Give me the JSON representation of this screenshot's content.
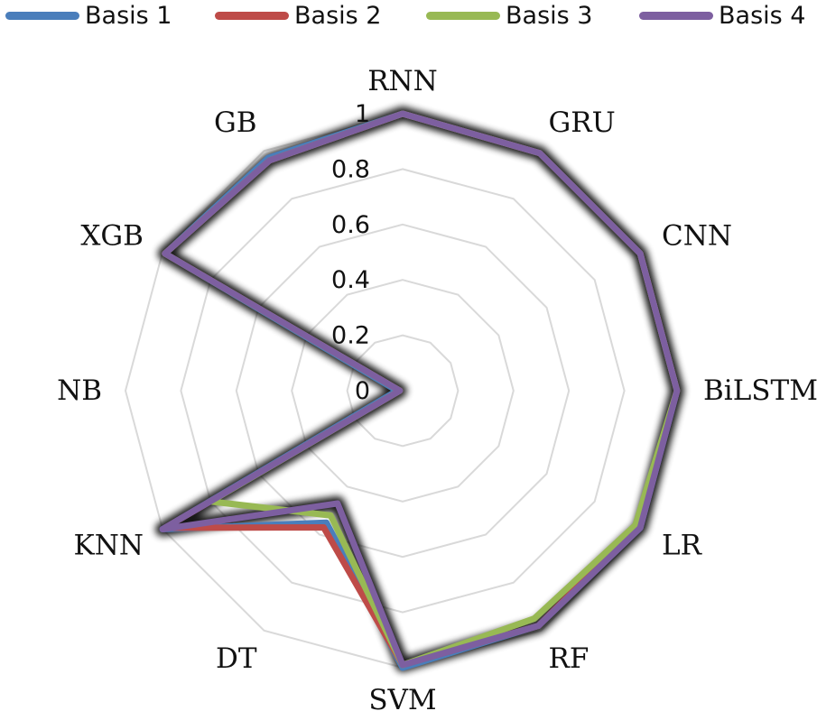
{
  "chart_data": {
    "type": "radar",
    "categories": [
      "RNN",
      "GRU",
      "CNN",
      "BiLSTM",
      "LR",
      "RF",
      "SVM",
      "DT",
      "KNN",
      "NB",
      "XGB",
      "GB"
    ],
    "axis_ticks": [
      "0",
      "0.2",
      "0.4",
      "0.6",
      "0.8",
      "1"
    ],
    "rmin": 0,
    "rmax": 1,
    "grid": true,
    "legend_position": "top",
    "series": [
      {
        "name": "Basis 1",
        "color": "#4a7ebb",
        "values": [
          1.0,
          0.99,
          0.99,
          0.99,
          0.99,
          0.98,
          1.0,
          0.55,
          1.0,
          0.02,
          0.99,
          0.97
        ]
      },
      {
        "name": "Basis 2",
        "color": "#be4b48",
        "values": [
          1.0,
          0.99,
          0.99,
          0.99,
          0.98,
          0.98,
          0.99,
          0.57,
          0.99,
          0.01,
          0.99,
          0.96
        ]
      },
      {
        "name": "Basis 3",
        "color": "#98b954",
        "values": [
          1.0,
          0.99,
          0.99,
          0.99,
          0.97,
          0.95,
          0.99,
          0.52,
          0.8,
          0.01,
          0.99,
          0.96
        ]
      },
      {
        "name": "Basis 4",
        "color": "#7d5fa0",
        "values": [
          1.0,
          0.99,
          0.99,
          0.99,
          0.99,
          0.98,
          0.99,
          0.47,
          1.0,
          0.01,
          0.99,
          0.96
        ]
      }
    ]
  }
}
